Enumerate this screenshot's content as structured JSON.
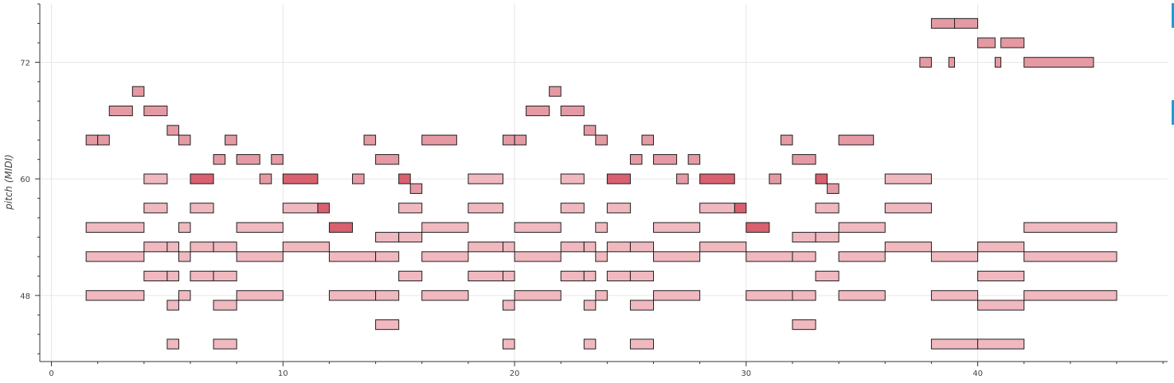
{
  "chart_data": {
    "type": "piano-roll",
    "title": "",
    "xlabel": "",
    "ylabel": "pitch (MIDI)",
    "xlim": [
      -0.5,
      48.2
    ],
    "ylim": [
      41.2,
      78.0
    ],
    "xticks": [
      0,
      10,
      20,
      30,
      40
    ],
    "xtick_labels": [
      "0",
      "10",
      "20",
      "30",
      "40"
    ],
    "yticks": [
      48,
      60,
      72
    ],
    "ytick_labels": [
      "48",
      "60",
      "72"
    ],
    "grid": true,
    "colors": {
      "light_fill": "#f0b8bf",
      "mid_fill": "#e59aa3",
      "dark_fill": "#d9606e",
      "note_stroke": "#1e1e1e",
      "grid": "#e6e6e6",
      "axis": "#333333",
      "side_marker": "#1f9ad6"
    },
    "notes": [
      {
        "start": 1.5,
        "end": 2.0,
        "pitch": 64,
        "v": 1
      },
      {
        "start": 2.0,
        "end": 2.5,
        "pitch": 64,
        "v": 1
      },
      {
        "start": 2.5,
        "end": 3.5,
        "pitch": 67,
        "v": 1
      },
      {
        "start": 3.5,
        "end": 4.0,
        "pitch": 69,
        "v": 1
      },
      {
        "start": 4.0,
        "end": 5.0,
        "pitch": 67,
        "v": 1
      },
      {
        "start": 5.0,
        "end": 5.5,
        "pitch": 65,
        "v": 1
      },
      {
        "start": 5.5,
        "end": 6.0,
        "pitch": 64,
        "v": 1
      },
      {
        "start": 7.0,
        "end": 7.5,
        "pitch": 62,
        "v": 1
      },
      {
        "start": 7.5,
        "end": 8.0,
        "pitch": 64,
        "v": 1
      },
      {
        "start": 8.0,
        "end": 9.0,
        "pitch": 62,
        "v": 1
      },
      {
        "start": 9.5,
        "end": 10.0,
        "pitch": 62,
        "v": 1
      },
      {
        "start": 9.0,
        "end": 9.5,
        "pitch": 60,
        "v": 1
      },
      {
        "start": 13.5,
        "end": 14.0,
        "pitch": 64,
        "v": 1
      },
      {
        "start": 14.0,
        "end": 15.0,
        "pitch": 62,
        "v": 1
      },
      {
        "start": 13.0,
        "end": 13.5,
        "pitch": 60,
        "v": 1
      },
      {
        "start": 15.5,
        "end": 16.0,
        "pitch": 59,
        "v": 1
      },
      {
        "start": 16.0,
        "end": 17.5,
        "pitch": 64,
        "v": 1
      },
      {
        "start": 19.5,
        "end": 20.0,
        "pitch": 64,
        "v": 1
      },
      {
        "start": 20.0,
        "end": 20.5,
        "pitch": 64,
        "v": 1
      },
      {
        "start": 20.5,
        "end": 21.5,
        "pitch": 67,
        "v": 1
      },
      {
        "start": 21.5,
        "end": 22.0,
        "pitch": 69,
        "v": 1
      },
      {
        "start": 22.0,
        "end": 23.0,
        "pitch": 67,
        "v": 1
      },
      {
        "start": 23.0,
        "end": 23.5,
        "pitch": 65,
        "v": 1
      },
      {
        "start": 23.5,
        "end": 24.0,
        "pitch": 64,
        "v": 1
      },
      {
        "start": 25.0,
        "end": 25.5,
        "pitch": 62,
        "v": 1
      },
      {
        "start": 25.5,
        "end": 26.0,
        "pitch": 64,
        "v": 1
      },
      {
        "start": 26.0,
        "end": 27.0,
        "pitch": 62,
        "v": 1
      },
      {
        "start": 27.5,
        "end": 28.0,
        "pitch": 62,
        "v": 1
      },
      {
        "start": 27.0,
        "end": 27.5,
        "pitch": 60,
        "v": 1
      },
      {
        "start": 31.5,
        "end": 32.0,
        "pitch": 64,
        "v": 1
      },
      {
        "start": 32.0,
        "end": 33.0,
        "pitch": 62,
        "v": 1
      },
      {
        "start": 31.0,
        "end": 31.5,
        "pitch": 60,
        "v": 1
      },
      {
        "start": 33.5,
        "end": 34.0,
        "pitch": 59,
        "v": 1
      },
      {
        "start": 34.0,
        "end": 35.5,
        "pitch": 64,
        "v": 1
      },
      {
        "start": 37.5,
        "end": 38.0,
        "pitch": 72,
        "v": 1
      },
      {
        "start": 38.0,
        "end": 39.0,
        "pitch": 76,
        "v": 1
      },
      {
        "start": 38.75,
        "end": 39.0,
        "pitch": 72,
        "v": 1
      },
      {
        "start": 39.0,
        "end": 40.0,
        "pitch": 76,
        "v": 1
      },
      {
        "start": 40.0,
        "end": 40.75,
        "pitch": 74,
        "v": 1
      },
      {
        "start": 40.75,
        "end": 41.0,
        "pitch": 72,
        "v": 1
      },
      {
        "start": 41.0,
        "end": 42.0,
        "pitch": 74,
        "v": 1
      },
      {
        "start": 42.0,
        "end": 45.0,
        "pitch": 72,
        "v": 1
      },
      {
        "start": 6.0,
        "end": 7.0,
        "pitch": 60,
        "v": 2
      },
      {
        "start": 10.0,
        "end": 11.5,
        "pitch": 60,
        "v": 2
      },
      {
        "start": 11.5,
        "end": 12.0,
        "pitch": 57,
        "v": 2
      },
      {
        "start": 12.0,
        "end": 13.0,
        "pitch": 55,
        "v": 2
      },
      {
        "start": 15.0,
        "end": 15.5,
        "pitch": 60,
        "v": 2
      },
      {
        "start": 24.0,
        "end": 25.0,
        "pitch": 60,
        "v": 2
      },
      {
        "start": 28.0,
        "end": 29.5,
        "pitch": 60,
        "v": 2
      },
      {
        "start": 29.5,
        "end": 30.0,
        "pitch": 57,
        "v": 2
      },
      {
        "start": 30.0,
        "end": 31.0,
        "pitch": 55,
        "v": 2
      },
      {
        "start": 33.0,
        "end": 33.5,
        "pitch": 60,
        "v": 2
      },
      {
        "start": 1.5,
        "end": 4.0,
        "pitch": 55,
        "v": 0
      },
      {
        "start": 1.5,
        "end": 4.0,
        "pitch": 52,
        "v": 0
      },
      {
        "start": 1.5,
        "end": 4.0,
        "pitch": 48,
        "v": 0
      },
      {
        "start": 4.0,
        "end": 5.0,
        "pitch": 60,
        "v": 0
      },
      {
        "start": 4.0,
        "end": 5.0,
        "pitch": 57,
        "v": 0
      },
      {
        "start": 4.0,
        "end": 5.0,
        "pitch": 53,
        "v": 0
      },
      {
        "start": 4.0,
        "end": 5.0,
        "pitch": 50,
        "v": 0
      },
      {
        "start": 5.0,
        "end": 5.5,
        "pitch": 53,
        "v": 0
      },
      {
        "start": 5.0,
        "end": 5.5,
        "pitch": 50,
        "v": 0
      },
      {
        "start": 5.0,
        "end": 5.5,
        "pitch": 47,
        "v": 0
      },
      {
        "start": 5.0,
        "end": 5.5,
        "pitch": 43,
        "v": 0
      },
      {
        "start": 5.5,
        "end": 6.0,
        "pitch": 55,
        "v": 0
      },
      {
        "start": 5.5,
        "end": 6.0,
        "pitch": 52,
        "v": 0
      },
      {
        "start": 5.5,
        "end": 6.0,
        "pitch": 48,
        "v": 0
      },
      {
        "start": 6.0,
        "end": 7.0,
        "pitch": 57,
        "v": 0
      },
      {
        "start": 6.0,
        "end": 7.0,
        "pitch": 53,
        "v": 0
      },
      {
        "start": 6.0,
        "end": 7.0,
        "pitch": 50,
        "v": 0
      },
      {
        "start": 7.0,
        "end": 8.0,
        "pitch": 53,
        "v": 0
      },
      {
        "start": 7.0,
        "end": 8.0,
        "pitch": 50,
        "v": 0
      },
      {
        "start": 7.0,
        "end": 8.0,
        "pitch": 47,
        "v": 0
      },
      {
        "start": 7.0,
        "end": 8.0,
        "pitch": 43,
        "v": 0
      },
      {
        "start": 8.0,
        "end": 10.0,
        "pitch": 55,
        "v": 0
      },
      {
        "start": 8.0,
        "end": 10.0,
        "pitch": 52,
        "v": 0
      },
      {
        "start": 8.0,
        "end": 10.0,
        "pitch": 48,
        "v": 0
      },
      {
        "start": 10.0,
        "end": 11.5,
        "pitch": 57,
        "v": 0
      },
      {
        "start": 10.0,
        "end": 12.0,
        "pitch": 53,
        "v": 0
      },
      {
        "start": 12.0,
        "end": 14.0,
        "pitch": 52,
        "v": 0
      },
      {
        "start": 12.0,
        "end": 14.0,
        "pitch": 48,
        "v": 0
      },
      {
        "start": 14.0,
        "end": 15.0,
        "pitch": 54,
        "v": 0
      },
      {
        "start": 14.0,
        "end": 15.0,
        "pitch": 52,
        "v": 0
      },
      {
        "start": 14.0,
        "end": 15.0,
        "pitch": 48,
        "v": 0
      },
      {
        "start": 14.0,
        "end": 15.0,
        "pitch": 45,
        "v": 0
      },
      {
        "start": 15.0,
        "end": 16.0,
        "pitch": 57,
        "v": 0
      },
      {
        "start": 15.0,
        "end": 16.0,
        "pitch": 54,
        "v": 0
      },
      {
        "start": 15.0,
        "end": 16.0,
        "pitch": 50,
        "v": 0
      },
      {
        "start": 16.0,
        "end": 18.0,
        "pitch": 55,
        "v": 0
      },
      {
        "start": 16.0,
        "end": 18.0,
        "pitch": 52,
        "v": 0
      },
      {
        "start": 16.0,
        "end": 18.0,
        "pitch": 48,
        "v": 0
      },
      {
        "start": 18.0,
        "end": 19.5,
        "pitch": 60,
        "v": 0
      },
      {
        "start": 18.0,
        "end": 19.5,
        "pitch": 57,
        "v": 0
      },
      {
        "start": 18.0,
        "end": 19.5,
        "pitch": 53,
        "v": 0
      },
      {
        "start": 18.0,
        "end": 19.5,
        "pitch": 50,
        "v": 0
      },
      {
        "start": 19.5,
        "end": 20.0,
        "pitch": 53,
        "v": 0
      },
      {
        "start": 19.5,
        "end": 20.0,
        "pitch": 50,
        "v": 0
      },
      {
        "start": 19.5,
        "end": 20.0,
        "pitch": 47,
        "v": 0
      },
      {
        "start": 19.5,
        "end": 20.0,
        "pitch": 43,
        "v": 0
      },
      {
        "start": 20.0,
        "end": 22.0,
        "pitch": 55,
        "v": 0
      },
      {
        "start": 20.0,
        "end": 22.0,
        "pitch": 52,
        "v": 0
      },
      {
        "start": 20.0,
        "end": 22.0,
        "pitch": 48,
        "v": 0
      },
      {
        "start": 22.0,
        "end": 23.0,
        "pitch": 60,
        "v": 0
      },
      {
        "start": 22.0,
        "end": 23.0,
        "pitch": 57,
        "v": 0
      },
      {
        "start": 22.0,
        "end": 23.0,
        "pitch": 53,
        "v": 0
      },
      {
        "start": 22.0,
        "end": 23.0,
        "pitch": 50,
        "v": 0
      },
      {
        "start": 23.0,
        "end": 23.5,
        "pitch": 53,
        "v": 0
      },
      {
        "start": 23.0,
        "end": 23.5,
        "pitch": 50,
        "v": 0
      },
      {
        "start": 23.0,
        "end": 23.5,
        "pitch": 47,
        "v": 0
      },
      {
        "start": 23.0,
        "end": 23.5,
        "pitch": 43,
        "v": 0
      },
      {
        "start": 23.5,
        "end": 24.0,
        "pitch": 55,
        "v": 0
      },
      {
        "start": 23.5,
        "end": 24.0,
        "pitch": 52,
        "v": 0
      },
      {
        "start": 23.5,
        "end": 24.0,
        "pitch": 48,
        "v": 0
      },
      {
        "start": 24.0,
        "end": 25.0,
        "pitch": 57,
        "v": 0
      },
      {
        "start": 24.0,
        "end": 25.0,
        "pitch": 53,
        "v": 0
      },
      {
        "start": 24.0,
        "end": 25.0,
        "pitch": 50,
        "v": 0
      },
      {
        "start": 25.0,
        "end": 26.0,
        "pitch": 53,
        "v": 0
      },
      {
        "start": 25.0,
        "end": 26.0,
        "pitch": 50,
        "v": 0
      },
      {
        "start": 25.0,
        "end": 26.0,
        "pitch": 47,
        "v": 0
      },
      {
        "start": 25.0,
        "end": 26.0,
        "pitch": 43,
        "v": 0
      },
      {
        "start": 26.0,
        "end": 28.0,
        "pitch": 55,
        "v": 0
      },
      {
        "start": 26.0,
        "end": 28.0,
        "pitch": 52,
        "v": 0
      },
      {
        "start": 26.0,
        "end": 28.0,
        "pitch": 48,
        "v": 0
      },
      {
        "start": 28.0,
        "end": 29.5,
        "pitch": 57,
        "v": 0
      },
      {
        "start": 28.0,
        "end": 30.0,
        "pitch": 53,
        "v": 0
      },
      {
        "start": 30.0,
        "end": 32.0,
        "pitch": 52,
        "v": 0
      },
      {
        "start": 30.0,
        "end": 32.0,
        "pitch": 48,
        "v": 0
      },
      {
        "start": 32.0,
        "end": 33.0,
        "pitch": 54,
        "v": 0
      },
      {
        "start": 32.0,
        "end": 33.0,
        "pitch": 52,
        "v": 0
      },
      {
        "start": 32.0,
        "end": 33.0,
        "pitch": 48,
        "v": 0
      },
      {
        "start": 32.0,
        "end": 33.0,
        "pitch": 45,
        "v": 0
      },
      {
        "start": 33.0,
        "end": 34.0,
        "pitch": 57,
        "v": 0
      },
      {
        "start": 33.0,
        "end": 34.0,
        "pitch": 54,
        "v": 0
      },
      {
        "start": 33.0,
        "end": 34.0,
        "pitch": 50,
        "v": 0
      },
      {
        "start": 34.0,
        "end": 36.0,
        "pitch": 55,
        "v": 0
      },
      {
        "start": 34.0,
        "end": 36.0,
        "pitch": 52,
        "v": 0
      },
      {
        "start": 34.0,
        "end": 36.0,
        "pitch": 48,
        "v": 0
      },
      {
        "start": 36.0,
        "end": 38.0,
        "pitch": 60,
        "v": 0
      },
      {
        "start": 36.0,
        "end": 38.0,
        "pitch": 57,
        "v": 0
      },
      {
        "start": 36.0,
        "end": 38.0,
        "pitch": 53,
        "v": 0
      },
      {
        "start": 38.0,
        "end": 40.0,
        "pitch": 52,
        "v": 0
      },
      {
        "start": 38.0,
        "end": 40.0,
        "pitch": 48,
        "v": 0
      },
      {
        "start": 38.0,
        "end": 40.0,
        "pitch": 43,
        "v": 0
      },
      {
        "start": 40.0,
        "end": 42.0,
        "pitch": 53,
        "v": 0
      },
      {
        "start": 40.0,
        "end": 42.0,
        "pitch": 50,
        "v": 0
      },
      {
        "start": 40.0,
        "end": 42.0,
        "pitch": 47,
        "v": 0
      },
      {
        "start": 40.0,
        "end": 42.0,
        "pitch": 43,
        "v": 0
      },
      {
        "start": 42.0,
        "end": 46.0,
        "pitch": 55,
        "v": 0
      },
      {
        "start": 42.0,
        "end": 46.0,
        "pitch": 52,
        "v": 0
      },
      {
        "start": 42.0,
        "end": 46.0,
        "pitch": 48,
        "v": 0
      }
    ]
  }
}
